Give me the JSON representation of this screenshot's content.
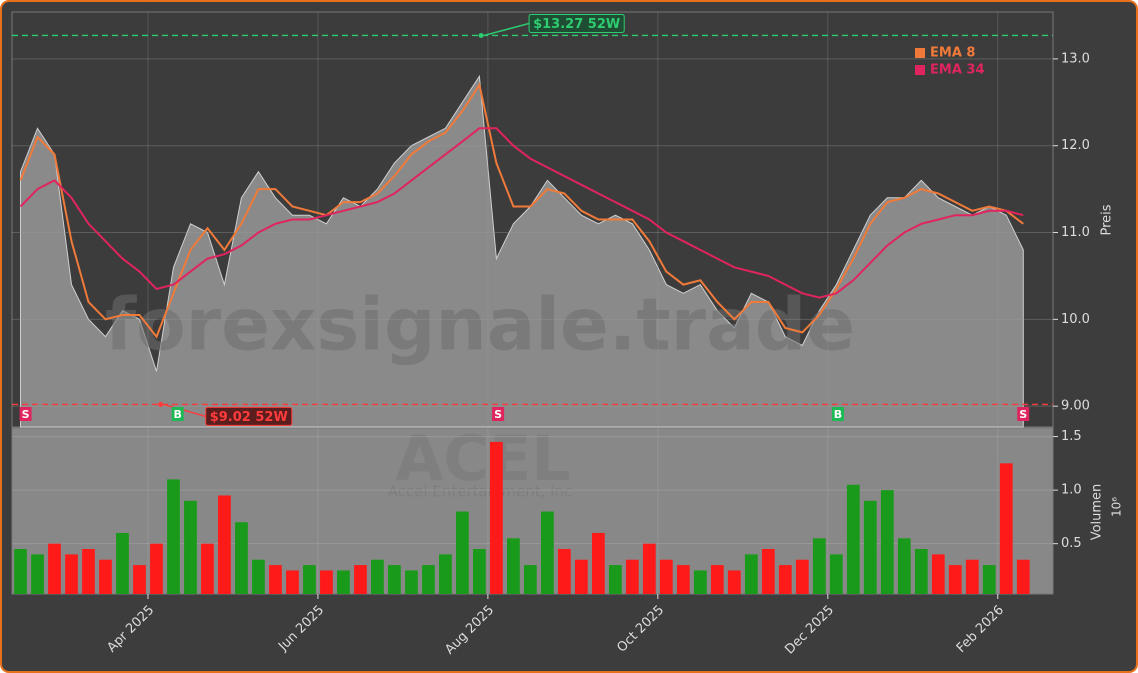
{
  "chart_data": {
    "type": "area",
    "watermark": "forexsignale.trade",
    "symbol": "ACEL",
    "company": "Accel Entertainment, Inc",
    "y_label": "Preis",
    "x": [
      1.5,
      1.7,
      1.9,
      2.1,
      2.3,
      2.5,
      2.7,
      2.9,
      3.1,
      3.3,
      3.5,
      3.7,
      3.9,
      4.1,
      4.3,
      4.5,
      4.7,
      4.9,
      5.1,
      5.3,
      5.5,
      5.7,
      5.9,
      6.1,
      6.3,
      6.5,
      6.7,
      6.9,
      7.1,
      7.3,
      7.5,
      7.7,
      7.9,
      8.1,
      8.3,
      8.5,
      8.7,
      8.9,
      9.1,
      9.3,
      9.5,
      9.7,
      9.9,
      10.1,
      10.3,
      10.5,
      10.7,
      10.9,
      11.1,
      11.3,
      11.5,
      11.7,
      11.9,
      12.1,
      12.3,
      12.5,
      12.7,
      12.9,
      13.1,
      13.3
    ],
    "close": [
      11.7,
      12.2,
      11.9,
      10.4,
      10.0,
      9.8,
      10.1,
      10.0,
      9.4,
      10.6,
      11.1,
      11.0,
      10.4,
      11.4,
      11.7,
      11.4,
      11.2,
      11.2,
      11.1,
      11.4,
      11.3,
      11.5,
      11.8,
      12.0,
      12.1,
      12.2,
      12.5,
      12.8,
      10.7,
      11.1,
      11.3,
      11.6,
      11.4,
      11.2,
      11.1,
      11.2,
      11.1,
      10.8,
      10.4,
      10.3,
      10.4,
      10.1,
      9.9,
      10.3,
      10.2,
      9.8,
      9.7,
      10.1,
      10.4,
      10.8,
      11.2,
      11.4,
      11.4,
      11.6,
      11.4,
      11.3,
      11.2,
      11.3,
      11.2,
      10.8
    ],
    "area_color": "#8a8a8a",
    "series": [
      {
        "name": "EMA 8",
        "color": "#f07a3a",
        "values": [
          11.6,
          12.1,
          11.9,
          10.9,
          10.2,
          10.0,
          10.05,
          10.05,
          9.8,
          10.3,
          10.8,
          11.05,
          10.8,
          11.1,
          11.5,
          11.5,
          11.3,
          11.25,
          11.2,
          11.35,
          11.35,
          11.45,
          11.65,
          11.9,
          12.05,
          12.15,
          12.4,
          12.7,
          11.8,
          11.3,
          11.3,
          11.5,
          11.45,
          11.25,
          11.15,
          11.15,
          11.15,
          10.9,
          10.55,
          10.4,
          10.45,
          10.2,
          10.0,
          10.2,
          10.2,
          9.9,
          9.85,
          10.05,
          10.35,
          10.7,
          11.1,
          11.35,
          11.4,
          11.5,
          11.45,
          11.35,
          11.25,
          11.3,
          11.25,
          11.1
        ]
      },
      {
        "name": "EMA 34",
        "color": "#e0245e",
        "values": [
          11.3,
          11.5,
          11.6,
          11.4,
          11.1,
          10.9,
          10.7,
          10.55,
          10.35,
          10.4,
          10.55,
          10.7,
          10.75,
          10.85,
          11.0,
          11.1,
          11.15,
          11.15,
          11.2,
          11.25,
          11.3,
          11.35,
          11.45,
          11.6,
          11.75,
          11.9,
          12.05,
          12.2,
          12.2,
          12.0,
          11.85,
          11.75,
          11.65,
          11.55,
          11.45,
          11.35,
          11.25,
          11.15,
          11.0,
          10.9,
          10.8,
          10.7,
          10.6,
          10.55,
          10.5,
          10.4,
          10.3,
          10.25,
          10.3,
          10.45,
          10.65,
          10.85,
          11.0,
          11.1,
          11.15,
          11.2,
          11.2,
          11.25,
          11.25,
          11.2
        ]
      }
    ],
    "xlim": [
      1.4,
      13.65
    ],
    "xticks": [
      {
        "value": 3,
        "label": "Apr 2025"
      },
      {
        "value": 5,
        "label": "Jun 2025"
      },
      {
        "value": 7,
        "label": "Aug 2025"
      },
      {
        "value": 9,
        "label": "Oct 2025"
      },
      {
        "value": 11,
        "label": "Dec 2025"
      },
      {
        "value": 13,
        "label": "Feb 2026"
      }
    ],
    "ylim": [
      8.76,
      13.54
    ],
    "yticks": [
      {
        "value": 9,
        "label": "9.00"
      },
      {
        "value": 10,
        "label": "10.0"
      },
      {
        "value": 11,
        "label": "11.0"
      },
      {
        "value": 12,
        "label": "12.0"
      },
      {
        "value": 13,
        "label": "13.0"
      }
    ],
    "grid": true,
    "legend": "upper right",
    "hlines": [
      {
        "value": 13.27,
        "x": 6.92,
        "label": "$13.27 52W",
        "color": "#2ecc71"
      },
      {
        "value": 9.02,
        "x": 3.15,
        "label": "$9.02 52W",
        "color": "#ff3b3b"
      }
    ],
    "signals": [
      {
        "x": 1.56,
        "label": "S",
        "color": "#e0245e"
      },
      {
        "x": 3.35,
        "label": "B",
        "color": "#1db954"
      },
      {
        "x": 7.12,
        "label": "S",
        "color": "#e0245e"
      },
      {
        "x": 11.12,
        "label": "B",
        "color": "#1db954"
      },
      {
        "x": 13.3,
        "label": "S",
        "color": "#e0245e"
      }
    ],
    "volume": {
      "label": "Volumen",
      "scale": "10⁶",
      "up_color": "#1a9a1a",
      "down_color": "#ff1a1a",
      "values": [
        0.45,
        0.4,
        0.5,
        0.4,
        0.45,
        0.35,
        0.6,
        0.3,
        0.5,
        1.1,
        0.9,
        0.5,
        0.95,
        0.7,
        0.35,
        0.3,
        0.25,
        0.3,
        0.25,
        0.25,
        0.3,
        0.35,
        0.3,
        0.25,
        0.3,
        0.4,
        0.8,
        0.45,
        1.45,
        0.55,
        0.3,
        0.8,
        0.45,
        0.35,
        0.6,
        0.3,
        0.35,
        0.5,
        0.35,
        0.3,
        0.25,
        0.3,
        0.25,
        0.4,
        0.45,
        0.3,
        0.35,
        0.55,
        0.4,
        1.05,
        0.9,
        1.0,
        0.55,
        0.45,
        0.4,
        0.3,
        0.35,
        0.3,
        1.25,
        0.35
      ],
      "ylim": [
        0.03,
        1.58
      ],
      "yticks": [
        0.5,
        {
          "value": 1,
          "label": "1.0"
        },
        1.5
      ]
    }
  }
}
